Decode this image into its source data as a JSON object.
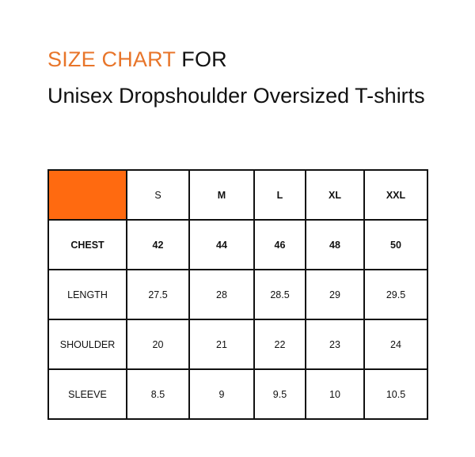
{
  "title": {
    "highlight": "SIZE CHART",
    "rest": " FOR",
    "subtitle": "Unisex Dropshoulder Oversized T-shirts"
  },
  "colors": {
    "title_accent": "#e8752a",
    "header_cell": "#ff6a10"
  },
  "table": {
    "sizes": [
      "S",
      "M",
      "L",
      "XL",
      "XXL"
    ],
    "rows": [
      {
        "label": "CHEST",
        "values": [
          "42",
          "44",
          "46",
          "48",
          "50"
        ]
      },
      {
        "label": "LENGTH",
        "values": [
          "27.5",
          "28",
          "28.5",
          "29",
          "29.5"
        ]
      },
      {
        "label": "SHOULDER",
        "values": [
          "20",
          "21",
          "22",
          "23",
          "24"
        ]
      },
      {
        "label": "SLEEVE",
        "values": [
          "8.5",
          "9",
          "9.5",
          "10",
          "10.5"
        ]
      }
    ]
  }
}
